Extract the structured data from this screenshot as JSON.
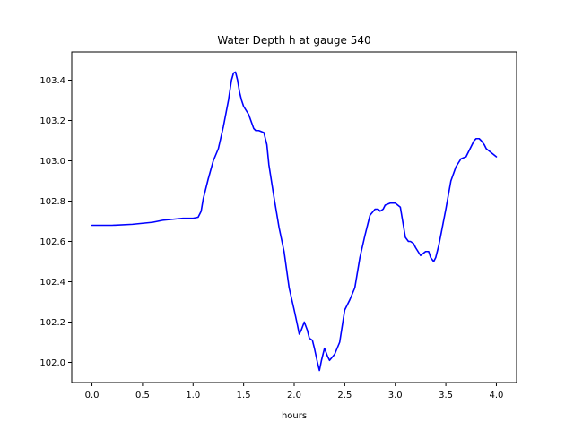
{
  "chart_data": {
    "type": "line",
    "title": "Water Depth h at gauge 540",
    "xlabel": "hours",
    "ylabel": "",
    "xlim": [
      -0.2,
      4.2
    ],
    "ylim": [
      101.9,
      103.54
    ],
    "xticks": [
      0.0,
      0.5,
      1.0,
      1.5,
      2.0,
      2.5,
      3.0,
      3.5,
      4.0
    ],
    "xtick_labels": [
      "0.0",
      "0.5",
      "1.0",
      "1.5",
      "2.0",
      "2.5",
      "3.0",
      "3.5",
      "4.0"
    ],
    "yticks": [
      102.0,
      102.2,
      102.4,
      102.6,
      102.8,
      103.0,
      103.2,
      103.4
    ],
    "ytick_labels": [
      "102.0",
      "102.2",
      "102.4",
      "102.6",
      "102.8",
      "103.0",
      "103.2",
      "103.4"
    ],
    "grid": false,
    "series": [
      {
        "color": "#0000ff",
        "x": [
          0.0,
          0.2,
          0.4,
          0.6,
          0.7,
          0.8,
          0.9,
          0.95,
          1.0,
          1.05,
          1.08,
          1.1,
          1.15,
          1.2,
          1.25,
          1.3,
          1.35,
          1.38,
          1.4,
          1.42,
          1.44,
          1.46,
          1.48,
          1.5,
          1.55,
          1.6,
          1.62,
          1.65,
          1.7,
          1.73,
          1.75,
          1.8,
          1.85,
          1.9,
          1.95,
          2.0,
          2.03,
          2.05,
          2.07,
          2.1,
          2.13,
          2.15,
          2.18,
          2.2,
          2.23,
          2.25,
          2.27,
          2.3,
          2.33,
          2.35,
          2.4,
          2.45,
          2.5,
          2.55,
          2.6,
          2.65,
          2.7,
          2.75,
          2.8,
          2.83,
          2.85,
          2.88,
          2.9,
          2.95,
          3.0,
          3.05,
          3.08,
          3.1,
          3.13,
          3.15,
          3.18,
          3.2,
          3.25,
          3.3,
          3.33,
          3.35,
          3.38,
          3.4,
          3.43,
          3.45,
          3.5,
          3.55,
          3.6,
          3.65,
          3.7,
          3.75,
          3.78,
          3.8,
          3.83,
          3.85,
          3.88,
          3.9,
          3.95,
          4.0
        ],
        "values": [
          102.68,
          102.68,
          102.685,
          102.695,
          102.705,
          102.71,
          102.715,
          102.715,
          102.715,
          102.72,
          102.75,
          102.81,
          102.91,
          103.0,
          103.06,
          103.17,
          103.3,
          103.4,
          103.435,
          103.44,
          103.4,
          103.34,
          103.3,
          103.27,
          103.23,
          103.16,
          103.15,
          103.15,
          103.14,
          103.08,
          102.98,
          102.82,
          102.67,
          102.55,
          102.37,
          102.26,
          102.19,
          102.14,
          102.16,
          102.2,
          102.16,
          102.12,
          102.11,
          102.07,
          102.0,
          101.96,
          102.01,
          102.07,
          102.03,
          102.01,
          102.04,
          102.1,
          102.26,
          102.31,
          102.37,
          102.52,
          102.63,
          102.73,
          102.76,
          102.76,
          102.75,
          102.76,
          102.78,
          102.79,
          102.79,
          102.77,
          102.68,
          102.62,
          102.6,
          102.6,
          102.59,
          102.57,
          102.53,
          102.55,
          102.55,
          102.52,
          102.5,
          102.52,
          102.58,
          102.63,
          102.76,
          102.9,
          102.97,
          103.01,
          103.02,
          103.07,
          103.1,
          103.11,
          103.11,
          103.1,
          103.08,
          103.06,
          103.04,
          103.02
        ]
      }
    ]
  }
}
